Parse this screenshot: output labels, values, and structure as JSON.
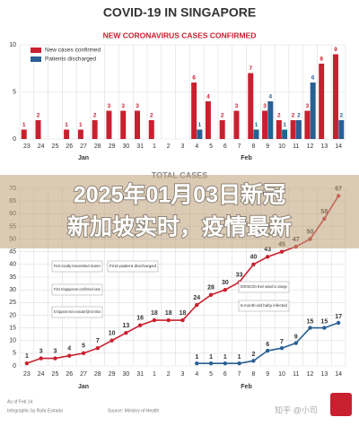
{
  "overlay_title": [
    "2025年01月03日新冠",
    "新加坡实时，疫情最新"
  ],
  "watermark": "知乎 @小司",
  "chart_data": [
    {
      "type": "bar",
      "title": "COVID-19 IN SINGAPORE",
      "subtitle": "NEW CORONAVIRUS CASES CONFIRMED",
      "categories": [
        "23",
        "24",
        "25",
        "26",
        "27",
        "28",
        "29",
        "30",
        "31",
        "1",
        "2",
        "3",
        "4",
        "5",
        "6",
        "7",
        "8",
        "9",
        "10",
        "11",
        "12",
        "13",
        "14"
      ],
      "months": [
        "Jan",
        "Feb"
      ],
      "series": [
        {
          "name": "New cases confirmed",
          "color": "#c8202f",
          "values": [
            1,
            2,
            0,
            1,
            1,
            2,
            3,
            3,
            3,
            2,
            0,
            0,
            6,
            4,
            2,
            3,
            7,
            3,
            2,
            2,
            3,
            8,
            9
          ]
        },
        {
          "name": "Patients discharged",
          "color": "#2a5f94",
          "values": [
            0,
            0,
            0,
            0,
            0,
            0,
            0,
            0,
            0,
            0,
            0,
            0,
            1,
            0,
            0,
            0,
            1,
            4,
            1,
            2,
            6,
            0,
            2
          ]
        }
      ],
      "ylim": [
        0,
        10
      ],
      "yticks": [
        0,
        5,
        10
      ],
      "grid": true
    },
    {
      "type": "line",
      "title": "TOTAL CASES",
      "categories": [
        "23",
        "24",
        "25",
        "26",
        "27",
        "28",
        "29",
        "30",
        "31",
        "1",
        "2",
        "3",
        "4",
        "5",
        "6",
        "7",
        "8",
        "9",
        "10",
        "11",
        "12",
        "13",
        "14"
      ],
      "months": [
        "Jan",
        "Feb"
      ],
      "series": [
        {
          "name": "Total cases",
          "color": "#c8202f",
          "values": [
            1,
            3,
            3,
            4,
            5,
            7,
            10,
            13,
            16,
            18,
            18,
            18,
            24,
            28,
            30,
            33,
            40,
            43,
            45,
            47,
            50,
            58,
            67
          ]
        },
        {
          "name": "Discharged",
          "color": "#2a5f94",
          "values": [
            null,
            null,
            null,
            null,
            null,
            null,
            null,
            null,
            null,
            null,
            null,
            null,
            1,
            1,
            1,
            1,
            2,
            6,
            7,
            9,
            15,
            15,
            17
          ]
        }
      ],
      "ylim": [
        0,
        70
      ],
      "yticks": [
        0,
        5,
        10,
        15,
        20,
        25,
        30,
        35,
        40,
        45,
        50,
        55,
        60,
        65,
        70
      ],
      "grid": true,
      "annotations": [
        "First locally transmitted cluster",
        "First patient discharged",
        "First Singaporean confirmed case",
        "92 Singaporeans return on evacuation flight from Wuhan",
        "DORSCON level raised to orange",
        "6-month-old baby infected"
      ],
      "footer": [
        "As of Feb 14",
        "Infographic by Rafa Estrada",
        "Source: Ministry of Health"
      ]
    }
  ]
}
